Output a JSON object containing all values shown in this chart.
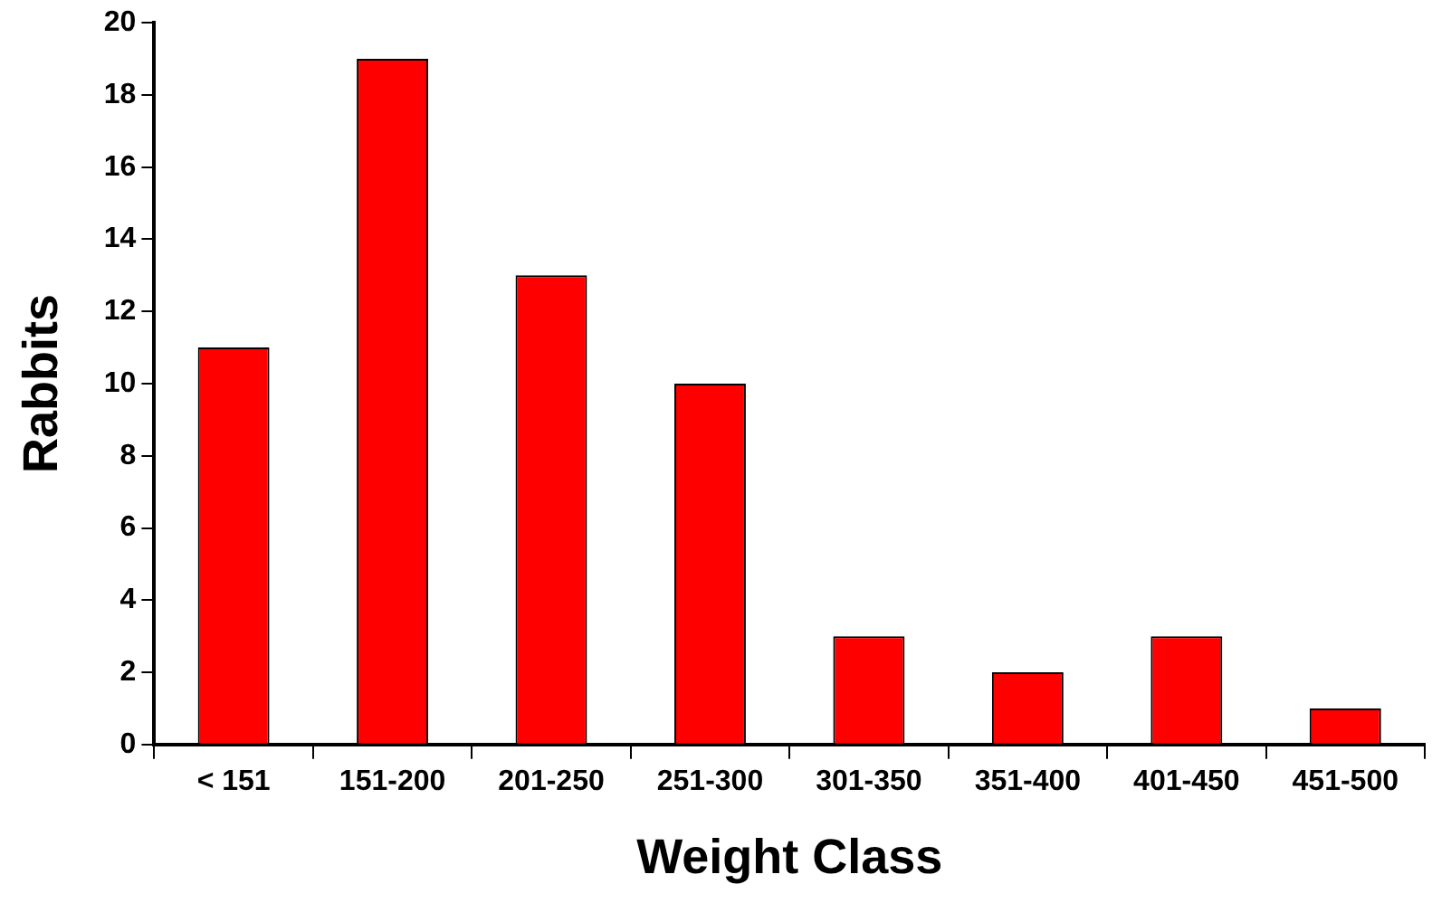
{
  "chart_data": {
    "type": "bar",
    "xlabel": "Weight Class",
    "ylabel": "Rabbits",
    "categories": [
      "< 151",
      "151-200",
      "201-250",
      "251-300",
      "301-350",
      "351-400",
      "401-450",
      "451-500"
    ],
    "values": [
      11,
      19,
      13,
      10,
      3,
      2,
      3,
      1
    ],
    "color": "#ff0000",
    "ylim": [
      0,
      20
    ],
    "yticks": [
      0,
      2,
      4,
      6,
      8,
      10,
      12,
      14,
      16,
      18,
      20
    ],
    "grid": false,
    "legend": false
  }
}
